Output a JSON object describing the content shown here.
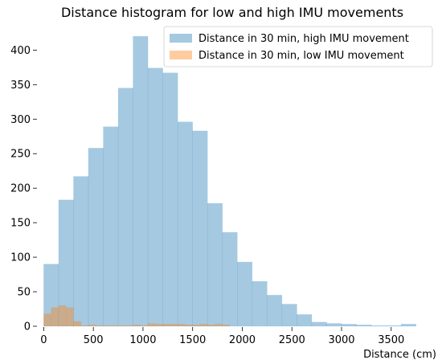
{
  "chart_data": {
    "type": "bar",
    "title": "Distance histogram for low and high IMU movements",
    "xlabel": "Distance (cm)",
    "ylabel": "",
    "xlim": [
      -60,
      3850
    ],
    "ylim": [
      0,
      440
    ],
    "xticks": [
      0,
      500,
      1000,
      1500,
      2000,
      2500,
      3000,
      3500
    ],
    "yticks": [
      0,
      50,
      100,
      150,
      200,
      250,
      300,
      350,
      400
    ],
    "grid": false,
    "legend_position": "top-right",
    "series": [
      {
        "name": "Distance in 30 min, high IMU movement",
        "color": "#1f77b4",
        "opacity": 0.4,
        "bin_width": 150,
        "bins": [
          {
            "x": 0,
            "value": 90
          },
          {
            "x": 150,
            "value": 183
          },
          {
            "x": 300,
            "value": 217
          },
          {
            "x": 450,
            "value": 258
          },
          {
            "x": 600,
            "value": 289
          },
          {
            "x": 750,
            "value": 345
          },
          {
            "x": 900,
            "value": 420
          },
          {
            "x": 1050,
            "value": 374
          },
          {
            "x": 1200,
            "value": 367
          },
          {
            "x": 1350,
            "value": 296
          },
          {
            "x": 1500,
            "value": 283
          },
          {
            "x": 1650,
            "value": 178
          },
          {
            "x": 1800,
            "value": 136
          },
          {
            "x": 1950,
            "value": 93
          },
          {
            "x": 2100,
            "value": 65
          },
          {
            "x": 2250,
            "value": 45
          },
          {
            "x": 2400,
            "value": 32
          },
          {
            "x": 2550,
            "value": 17
          },
          {
            "x": 2700,
            "value": 6
          },
          {
            "x": 2850,
            "value": 4
          },
          {
            "x": 3000,
            "value": 3
          },
          {
            "x": 3150,
            "value": 2
          },
          {
            "x": 3300,
            "value": 1
          },
          {
            "x": 3450,
            "value": 1
          },
          {
            "x": 3600,
            "value": 3
          }
        ]
      },
      {
        "name": "Distance in 30 min, low IMU movement",
        "color": "#ff7f0e",
        "opacity": 0.4,
        "bin_width": 75,
        "bins": [
          {
            "x": 0,
            "value": 18
          },
          {
            "x": 75,
            "value": 27
          },
          {
            "x": 150,
            "value": 30
          },
          {
            "x": 225,
            "value": 27
          },
          {
            "x": 300,
            "value": 7
          },
          {
            "x": 375,
            "value": 1
          },
          {
            "x": 450,
            "value": 2
          },
          {
            "x": 525,
            "value": 1
          },
          {
            "x": 600,
            "value": 1
          },
          {
            "x": 675,
            "value": 1
          },
          {
            "x": 750,
            "value": 1
          },
          {
            "x": 825,
            "value": 1
          },
          {
            "x": 900,
            "value": 2
          },
          {
            "x": 975,
            "value": 1
          },
          {
            "x": 1050,
            "value": 4
          },
          {
            "x": 1125,
            "value": 3
          },
          {
            "x": 1200,
            "value": 3
          },
          {
            "x": 1275,
            "value": 3
          },
          {
            "x": 1350,
            "value": 3
          },
          {
            "x": 1425,
            "value": 2
          },
          {
            "x": 1500,
            "value": 2
          },
          {
            "x": 1575,
            "value": 3
          },
          {
            "x": 1650,
            "value": 2
          },
          {
            "x": 1725,
            "value": 3
          },
          {
            "x": 1800,
            "value": 2
          }
        ]
      }
    ]
  }
}
